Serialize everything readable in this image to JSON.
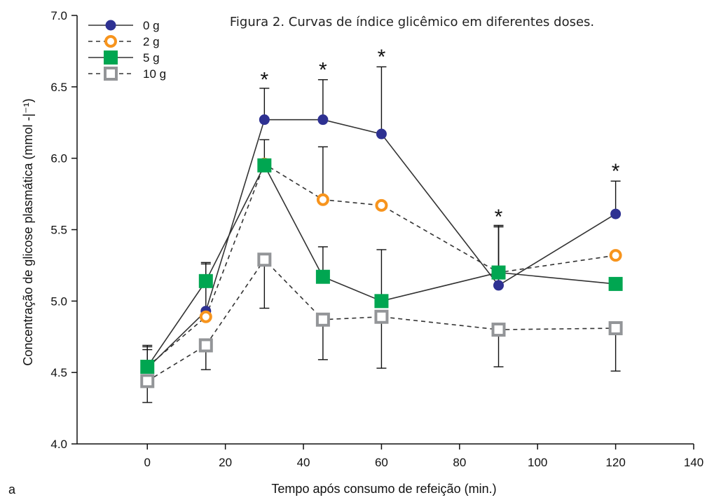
{
  "caption": "Figura 2. Curvas de índice glicêmico em diferentes doses.",
  "panel_label": "a",
  "chart_data": {
    "type": "line",
    "title": "",
    "xlabel": "Tempo após consumo de refeição (min.)",
    "ylabel": "Concentração de glicose plasmática (mmol -|⁻¹)",
    "xlim": [
      -18,
      140
    ],
    "ylim": [
      4.0,
      7.0
    ],
    "x_ticks": [
      0,
      20,
      40,
      60,
      80,
      100,
      120,
      140
    ],
    "y_ticks": [
      4.0,
      4.5,
      5.0,
      5.5,
      6.0,
      6.5,
      7.0
    ],
    "x_tick_labels": [
      "0",
      "20",
      "40",
      "60",
      "80",
      "100",
      "120",
      "140"
    ],
    "y_tick_labels": [
      "4.0",
      "4.5",
      "5.0",
      "5.5",
      "6.0",
      "6.5",
      "7.0"
    ],
    "grid": false,
    "legend_position": "top-left",
    "significance_times": [
      30,
      45,
      60,
      90,
      120
    ],
    "significance_label": "*",
    "series": [
      {
        "name": "0 g",
        "marker": "filled-circle",
        "line": "solid",
        "color": "#2e3192",
        "x": [
          0,
          15,
          30,
          45,
          60,
          90,
          120
        ],
        "y": [
          4.53,
          4.93,
          6.27,
          6.27,
          6.17,
          5.11,
          5.61
        ],
        "err": [
          0.15,
          0.33,
          0.22,
          0.28,
          0.47,
          0.42,
          0.23
        ]
      },
      {
        "name": "2 g",
        "marker": "open-circle",
        "line": "dashed",
        "color": "#f7941d",
        "x": [
          0,
          15,
          30,
          45,
          60,
          90,
          120
        ],
        "y": [
          4.54,
          4.89,
          5.96,
          5.71,
          5.67,
          5.2,
          5.32
        ],
        "err": [
          0.15,
          0.0,
          0.0,
          0.37,
          0.0,
          0.32,
          0.0
        ]
      },
      {
        "name": "5 g",
        "marker": "filled-square",
        "line": "solid",
        "color": "#00a651",
        "x": [
          0,
          15,
          30,
          45,
          60,
          90,
          120
        ],
        "y": [
          4.54,
          5.14,
          5.95,
          5.17,
          5.0,
          5.2,
          5.12
        ],
        "err": [
          0.12,
          0.13,
          0.18,
          0.21,
          0.36,
          0.32,
          0.0
        ]
      },
      {
        "name": "10 g",
        "marker": "open-square",
        "line": "dashed",
        "color": "#939598",
        "x": [
          0,
          15,
          30,
          45,
          60,
          90,
          120
        ],
        "y": [
          4.44,
          4.69,
          5.29,
          4.87,
          4.89,
          4.8,
          4.81
        ],
        "err": [
          0.15,
          0.17,
          0.34,
          0.28,
          0.36,
          0.26,
          0.3
        ]
      }
    ]
  }
}
